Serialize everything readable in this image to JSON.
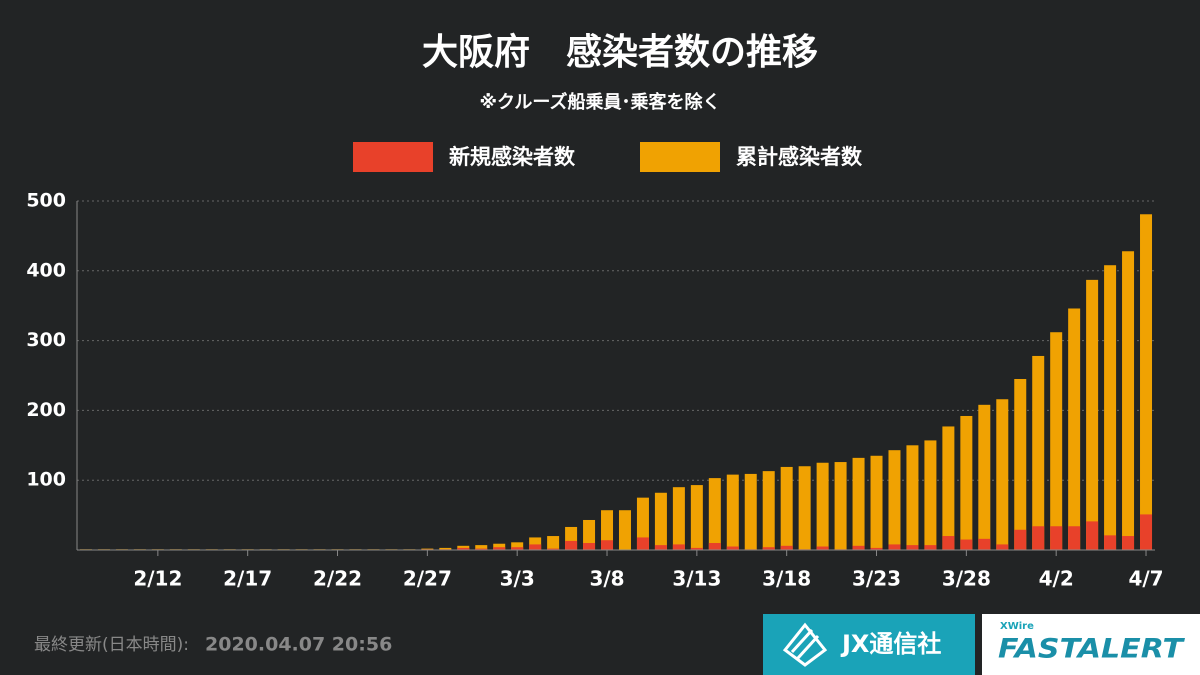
{
  "chart_data": {
    "type": "bar",
    "title": "大阪府　感染者数の推移",
    "subtitle": "※クルーズ船乗員･乗客を除く",
    "categories": [
      null,
      null,
      null,
      null,
      "2/12",
      null,
      null,
      null,
      null,
      "2/17",
      null,
      null,
      null,
      null,
      "2/22",
      null,
      null,
      null,
      null,
      "2/27",
      null,
      null,
      null,
      null,
      "3/3",
      null,
      null,
      null,
      null,
      "3/8",
      null,
      null,
      null,
      null,
      "3/13",
      null,
      null,
      null,
      null,
      "3/18",
      null,
      null,
      null,
      null,
      "3/23",
      null,
      null,
      null,
      null,
      "3/28",
      null,
      null,
      null,
      null,
      "4/2",
      null,
      null,
      null,
      null,
      "4/7"
    ],
    "series": [
      {
        "name": "累計感染者数",
        "color": "#f0a202",
        "values": [
          1,
          1,
          1,
          1,
          1,
          1,
          1,
          1,
          1,
          1,
          1,
          1,
          1,
          1,
          1,
          1,
          1,
          1,
          1,
          2,
          3,
          6,
          7,
          9,
          11,
          18,
          20,
          33,
          43,
          57,
          57,
          75,
          82,
          90,
          93,
          103,
          108,
          109,
          113,
          119,
          120,
          125,
          126,
          132,
          135,
          143,
          150,
          157,
          177,
          192,
          208,
          216,
          245,
          278,
          312,
          346,
          387,
          408,
          428,
          481
        ]
      },
      {
        "name": "新規感染者数",
        "color": "#e8412a",
        "values": [
          0,
          0,
          0,
          0,
          0,
          0,
          0,
          0,
          0,
          0,
          0,
          0,
          0,
          0,
          0,
          0,
          0,
          0,
          0,
          1,
          1,
          3,
          2,
          4,
          4,
          8,
          2,
          13,
          10,
          14,
          0,
          18,
          7,
          8,
          3,
          10,
          5,
          1,
          4,
          6,
          1,
          5,
          1,
          6,
          3,
          8,
          7,
          7,
          20,
          15,
          16,
          8,
          29,
          34,
          34,
          34,
          41,
          21,
          20,
          51
        ]
      }
    ],
    "legend_order": [
      1,
      0
    ],
    "ylim": [
      0,
      500
    ],
    "yticks": [
      100,
      200,
      300,
      400,
      500
    ],
    "grid": true
  },
  "footer": {
    "updated": "最終更新(日本時間):",
    "timestamp": "2020.04.07 20:56",
    "logo1": "JX通信社",
    "logo2_small": "XWire",
    "logo2": "FASTALERT"
  }
}
